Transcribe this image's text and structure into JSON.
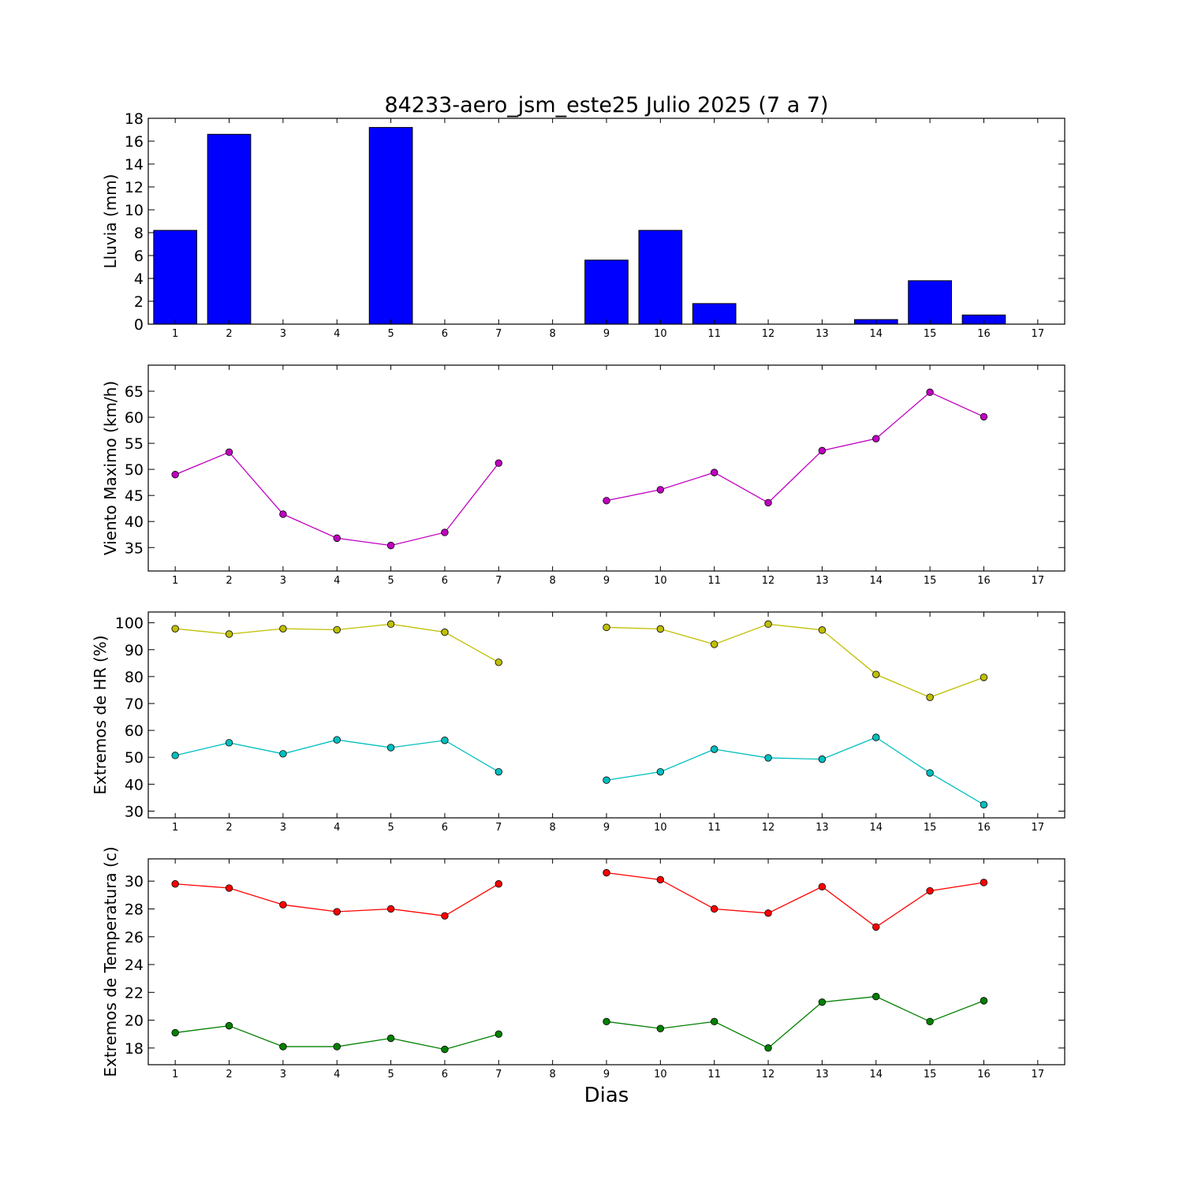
{
  "figure": {
    "title": "84233-aero_jsm_este25 Julio 2025  (7 a 7)",
    "xlabel": "Dias"
  },
  "chart_data": [
    {
      "id": "rain",
      "type": "bar",
      "ylabel": "Lluvia (mm)",
      "xlim": [
        0.5,
        17.5
      ],
      "ylim": [
        0,
        18
      ],
      "xticks": [
        1,
        2,
        3,
        4,
        5,
        6,
        7,
        8,
        9,
        10,
        11,
        12,
        13,
        14,
        15,
        16,
        17
      ],
      "yticks": [
        0,
        2,
        4,
        6,
        8,
        10,
        12,
        14,
        16,
        18
      ],
      "grid": false,
      "categories": [
        1,
        2,
        3,
        4,
        5,
        6,
        7,
        8,
        9,
        10,
        11,
        12,
        13,
        14,
        15,
        16
      ],
      "values": [
        8.2,
        16.6,
        0,
        0,
        17.2,
        0,
        0,
        null,
        5.6,
        8.2,
        1.8,
        0,
        0,
        0.4,
        3.8,
        0.8
      ],
      "color": "#0000ff"
    },
    {
      "id": "wind",
      "type": "line",
      "ylabel": "Viento Maximo (km/h)",
      "xlim": [
        0.5,
        17.5
      ],
      "ylim": [
        30.5,
        70
      ],
      "xticks": [
        1,
        2,
        3,
        4,
        5,
        6,
        7,
        8,
        9,
        10,
        11,
        12,
        13,
        14,
        15,
        16,
        17
      ],
      "yticks": [
        35,
        40,
        45,
        50,
        55,
        60,
        65
      ],
      "grid": false,
      "x": [
        1,
        2,
        3,
        4,
        5,
        6,
        7,
        8,
        9,
        10,
        11,
        12,
        13,
        14,
        15,
        16
      ],
      "series": [
        {
          "color": "#bf00bf",
          "values": [
            49.0,
            53.3,
            41.4,
            36.8,
            35.4,
            37.9,
            51.2,
            null,
            44.0,
            46.1,
            49.4,
            43.6,
            53.6,
            55.9,
            64.8,
            60.1
          ]
        }
      ]
    },
    {
      "id": "hr",
      "type": "line",
      "ylabel": "Extremos de HR (%)",
      "xlim": [
        0.5,
        17.5
      ],
      "ylim": [
        27.5,
        104
      ],
      "xticks": [
        1,
        2,
        3,
        4,
        5,
        6,
        7,
        8,
        9,
        10,
        11,
        12,
        13,
        14,
        15,
        16,
        17
      ],
      "yticks": [
        30,
        40,
        50,
        60,
        70,
        80,
        90,
        100
      ],
      "grid": false,
      "x": [
        1,
        2,
        3,
        4,
        5,
        6,
        7,
        8,
        9,
        10,
        11,
        12,
        13,
        14,
        15,
        16
      ],
      "series": [
        {
          "color": "#bfbf00",
          "values": [
            97.8,
            95.8,
            97.8,
            97.4,
            99.5,
            96.5,
            85.3,
            null,
            98.3,
            97.7,
            92.0,
            99.5,
            97.3,
            80.8,
            72.3,
            79.7
          ]
        },
        {
          "color": "#00bfbf",
          "values": [
            50.7,
            55.4,
            51.3,
            56.5,
            53.6,
            56.3,
            44.6,
            null,
            41.5,
            44.6,
            53.0,
            49.8,
            49.3,
            57.4,
            44.2,
            32.4
          ]
        }
      ]
    },
    {
      "id": "temp",
      "type": "line",
      "ylabel": "Extremos de Temperatura (c)",
      "xlim": [
        0.5,
        17.5
      ],
      "ylim": [
        16.8,
        31.6
      ],
      "xticks": [
        1,
        2,
        3,
        4,
        5,
        6,
        7,
        8,
        9,
        10,
        11,
        12,
        13,
        14,
        15,
        16,
        17
      ],
      "yticks": [
        18,
        20,
        22,
        24,
        26,
        28,
        30
      ],
      "grid": false,
      "x": [
        1,
        2,
        3,
        4,
        5,
        6,
        7,
        8,
        9,
        10,
        11,
        12,
        13,
        14,
        15,
        16
      ],
      "series": [
        {
          "color": "#ff0000",
          "values": [
            29.8,
            29.5,
            28.3,
            27.8,
            28.0,
            27.5,
            29.8,
            null,
            30.6,
            30.1,
            28.0,
            27.7,
            29.6,
            26.7,
            29.3,
            29.9
          ]
        },
        {
          "color": "#008000",
          "values": [
            19.1,
            19.6,
            18.1,
            18.1,
            18.7,
            17.9,
            19.0,
            null,
            19.9,
            19.4,
            19.9,
            18.0,
            21.3,
            21.7,
            19.9,
            21.4
          ]
        }
      ]
    }
  ]
}
